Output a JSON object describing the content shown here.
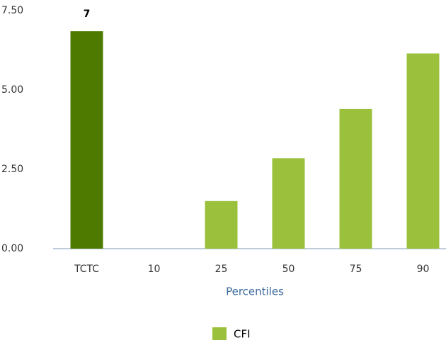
{
  "chart_data": {
    "type": "bar",
    "categories": [
      "TCTC",
      "10",
      "25",
      "50",
      "75",
      "90"
    ],
    "values": [
      6.85,
      0,
      1.5,
      2.85,
      4.4,
      6.15
    ],
    "value_labels": [
      "7",
      null,
      null,
      null,
      null,
      null
    ],
    "colors": [
      "#4e7a00",
      "#9bc13c",
      "#9bc13c",
      "#9bc13c",
      "#9bc13c",
      "#9bc13c"
    ],
    "series_name": "CFI",
    "legend_color": "#9bc13c",
    "xlabel": "Percentiles",
    "ylim": [
      0,
      7.5
    ],
    "yticks": [
      {
        "value": 0,
        "label": "0.00"
      },
      {
        "value": 2.5,
        "label": "2.50"
      },
      {
        "value": 5,
        "label": "5.00"
      },
      {
        "value": 7.5,
        "label": "7.50"
      }
    ],
    "legend": "bottom"
  }
}
